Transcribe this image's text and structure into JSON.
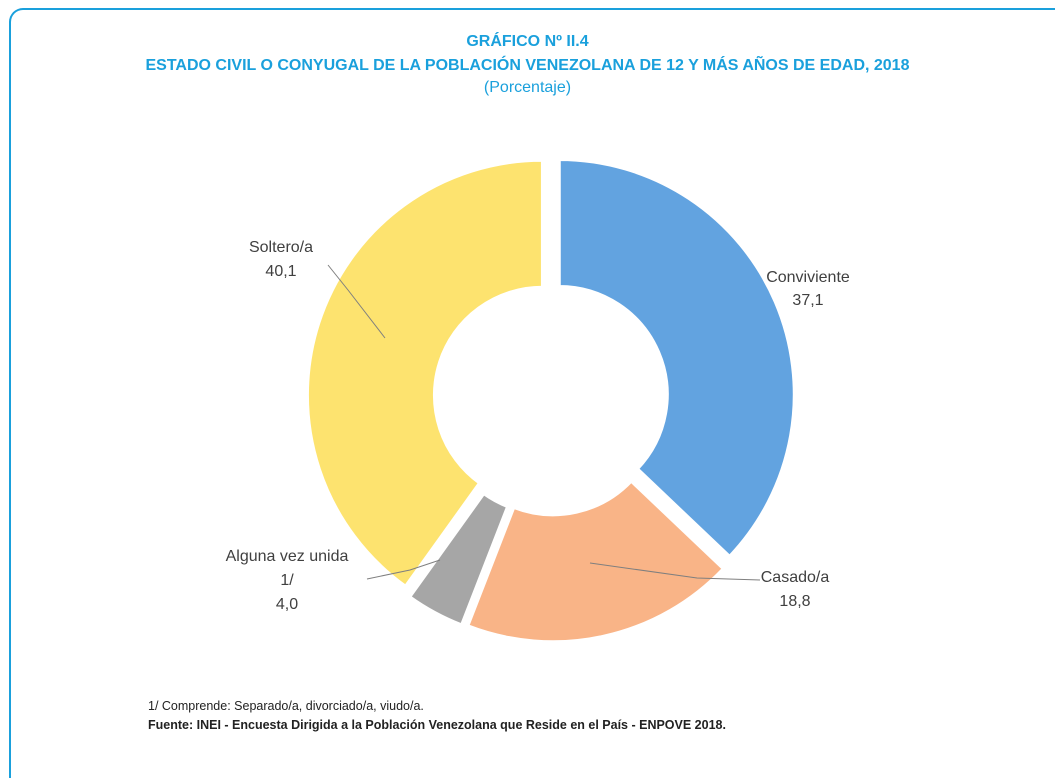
{
  "title": "GRÁFICO Nº II.4",
  "subtitle": "ESTADO CIVIL O CONYUGAL DE LA POBLACIÓN VENEZOLANA DE 12 Y MÁS AÑOS DE EDAD, 2018",
  "unit": "(Porcentaje)",
  "colors": {
    "accent": "#1aa0dc",
    "conviviente": "#62a3e0",
    "casado": "#f9b487",
    "alguna": "#a6a6a6",
    "soltero": "#fde36f"
  },
  "chart_data": {
    "type": "pie",
    "style": "donut",
    "slices": [
      {
        "label": "Conviviente",
        "value": 37.1,
        "value_text": "37,1",
        "color": "#62a3e0"
      },
      {
        "label": "Casado/a",
        "value": 18.8,
        "value_text": "18,8",
        "color": "#f9b487"
      },
      {
        "label": "Alguna vez unida 1/",
        "value": 4.0,
        "value_text": "4,0",
        "color": "#a6a6a6"
      },
      {
        "label": "Soltero/a",
        "value": 40.1,
        "value_text": "40,1",
        "color": "#fde36f"
      }
    ]
  },
  "labels": {
    "conviviente": "Conviviente",
    "conviviente_val": "37,1",
    "casado": "Casado/a",
    "casado_val": "18,8",
    "alguna_1": "Alguna vez unida",
    "alguna_2": "1/",
    "alguna_val": "4,0",
    "soltero": "Soltero/a",
    "soltero_val": "40,1"
  },
  "notes": {
    "footnote": "1/ Comprende: Separado/a, divorciado/a, viudo/a.",
    "source": "Fuente: INEI - Encuesta Dirigida a la Población Venezolana que Reside en el País - ENPOVE 2018."
  }
}
